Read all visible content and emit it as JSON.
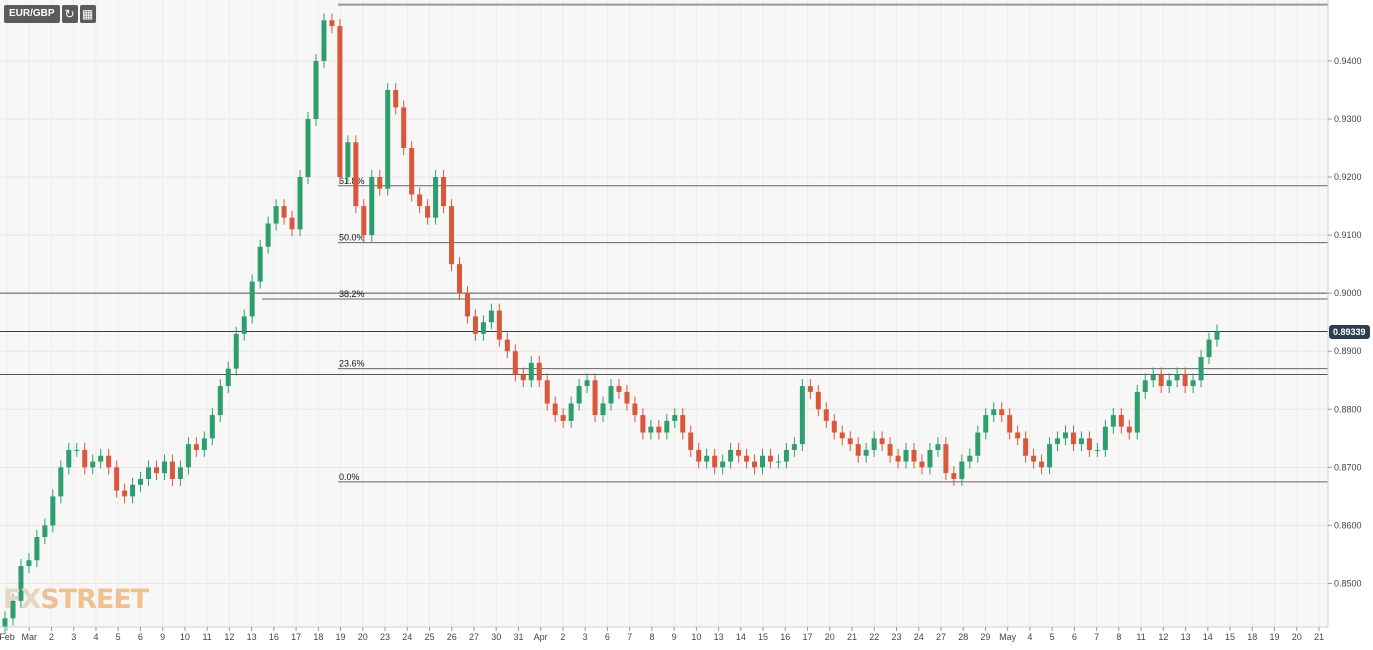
{
  "toolbar": {
    "pair": "EUR/GBP",
    "refresh_icon": "refresh-icon",
    "calendar_icon": "calendar-icon"
  },
  "current_price": "0.89339",
  "logo": {
    "part1": "FX",
    "part2": "STREET"
  },
  "chart_data": {
    "type": "candlestick",
    "title": "EUR/GBP",
    "ylim": [
      0.8425,
      0.9505
    ],
    "yticks": [
      "0.9400",
      "0.9300",
      "0.9200",
      "0.9100",
      "0.9000",
      "0.8900",
      "0.8800",
      "0.8700",
      "0.8600",
      "0.8500"
    ],
    "ytick_values": [
      0.94,
      0.93,
      0.92,
      0.91,
      0.9,
      0.89,
      0.88,
      0.87,
      0.86,
      0.85
    ],
    "x_labels": [
      "Feb",
      "Mar",
      "2",
      "3",
      "4",
      "5",
      "6",
      "9",
      "10",
      "11",
      "12",
      "13",
      "16",
      "17",
      "18",
      "19",
      "20",
      "23",
      "24",
      "25",
      "26",
      "27",
      "30",
      "31",
      "Apr",
      "2",
      "3",
      "6",
      "7",
      "8",
      "9",
      "10",
      "13",
      "14",
      "15",
      "16",
      "17",
      "20",
      "21",
      "22",
      "23",
      "24",
      "27",
      "28",
      "29",
      "May",
      "4",
      "5",
      "6",
      "7",
      "8",
      "11",
      "12",
      "13",
      "14",
      "15",
      "18",
      "19",
      "20",
      "21"
    ],
    "grid": true,
    "fibonacci": [
      {
        "label": "61.8%",
        "value": 0.9185
      },
      {
        "label": "50.0%",
        "value": 0.9087
      },
      {
        "label": "38.2%",
        "value": 0.899
      },
      {
        "label": "23.6%",
        "value": 0.887
      },
      {
        "label": "0.0%",
        "value": 0.8675
      }
    ],
    "horizontal_lines": [
      0.9,
      0.8934,
      0.886,
      0.9497
    ],
    "close_series": [
      0.844,
      0.847,
      0.853,
      0.854,
      0.858,
      0.86,
      0.865,
      0.87,
      0.873,
      0.873,
      0.87,
      0.871,
      0.872,
      0.87,
      0.866,
      0.865,
      0.867,
      0.868,
      0.87,
      0.869,
      0.871,
      0.868,
      0.87,
      0.874,
      0.873,
      0.875,
      0.879,
      0.884,
      0.887,
      0.893,
      0.896,
      0.902,
      0.908,
      0.912,
      0.915,
      0.913,
      0.911,
      0.92,
      0.93,
      0.94,
      0.947,
      0.946,
      0.92,
      0.926,
      0.915,
      0.91,
      0.92,
      0.918,
      0.935,
      0.932,
      0.925,
      0.917,
      0.915,
      0.913,
      0.92,
      0.915,
      0.905,
      0.9,
      0.896,
      0.893,
      0.895,
      0.897,
      0.892,
      0.89,
      0.886,
      0.885,
      0.888,
      0.885,
      0.881,
      0.879,
      0.878,
      0.881,
      0.884,
      0.885,
      0.879,
      0.881,
      0.884,
      0.883,
      0.881,
      0.879,
      0.876,
      0.877,
      0.876,
      0.878,
      0.879,
      0.876,
      0.873,
      0.871,
      0.872,
      0.87,
      0.871,
      0.873,
      0.872,
      0.871,
      0.87,
      0.872,
      0.871,
      0.871,
      0.873,
      0.874,
      0.884,
      0.883,
      0.88,
      0.878,
      0.876,
      0.875,
      0.874,
      0.872,
      0.873,
      0.875,
      0.874,
      0.872,
      0.871,
      0.873,
      0.871,
      0.87,
      0.873,
      0.874,
      0.869,
      0.868,
      0.871,
      0.872,
      0.876,
      0.879,
      0.88,
      0.879,
      0.876,
      0.875,
      0.872,
      0.871,
      0.87,
      0.874,
      0.875,
      0.876,
      0.874,
      0.875,
      0.873,
      0.873,
      0.877,
      0.879,
      0.877,
      0.876,
      0.883,
      0.885,
      0.886,
      0.884,
      0.885,
      0.886,
      0.884,
      0.885,
      0.889,
      0.892,
      0.8934
    ]
  }
}
